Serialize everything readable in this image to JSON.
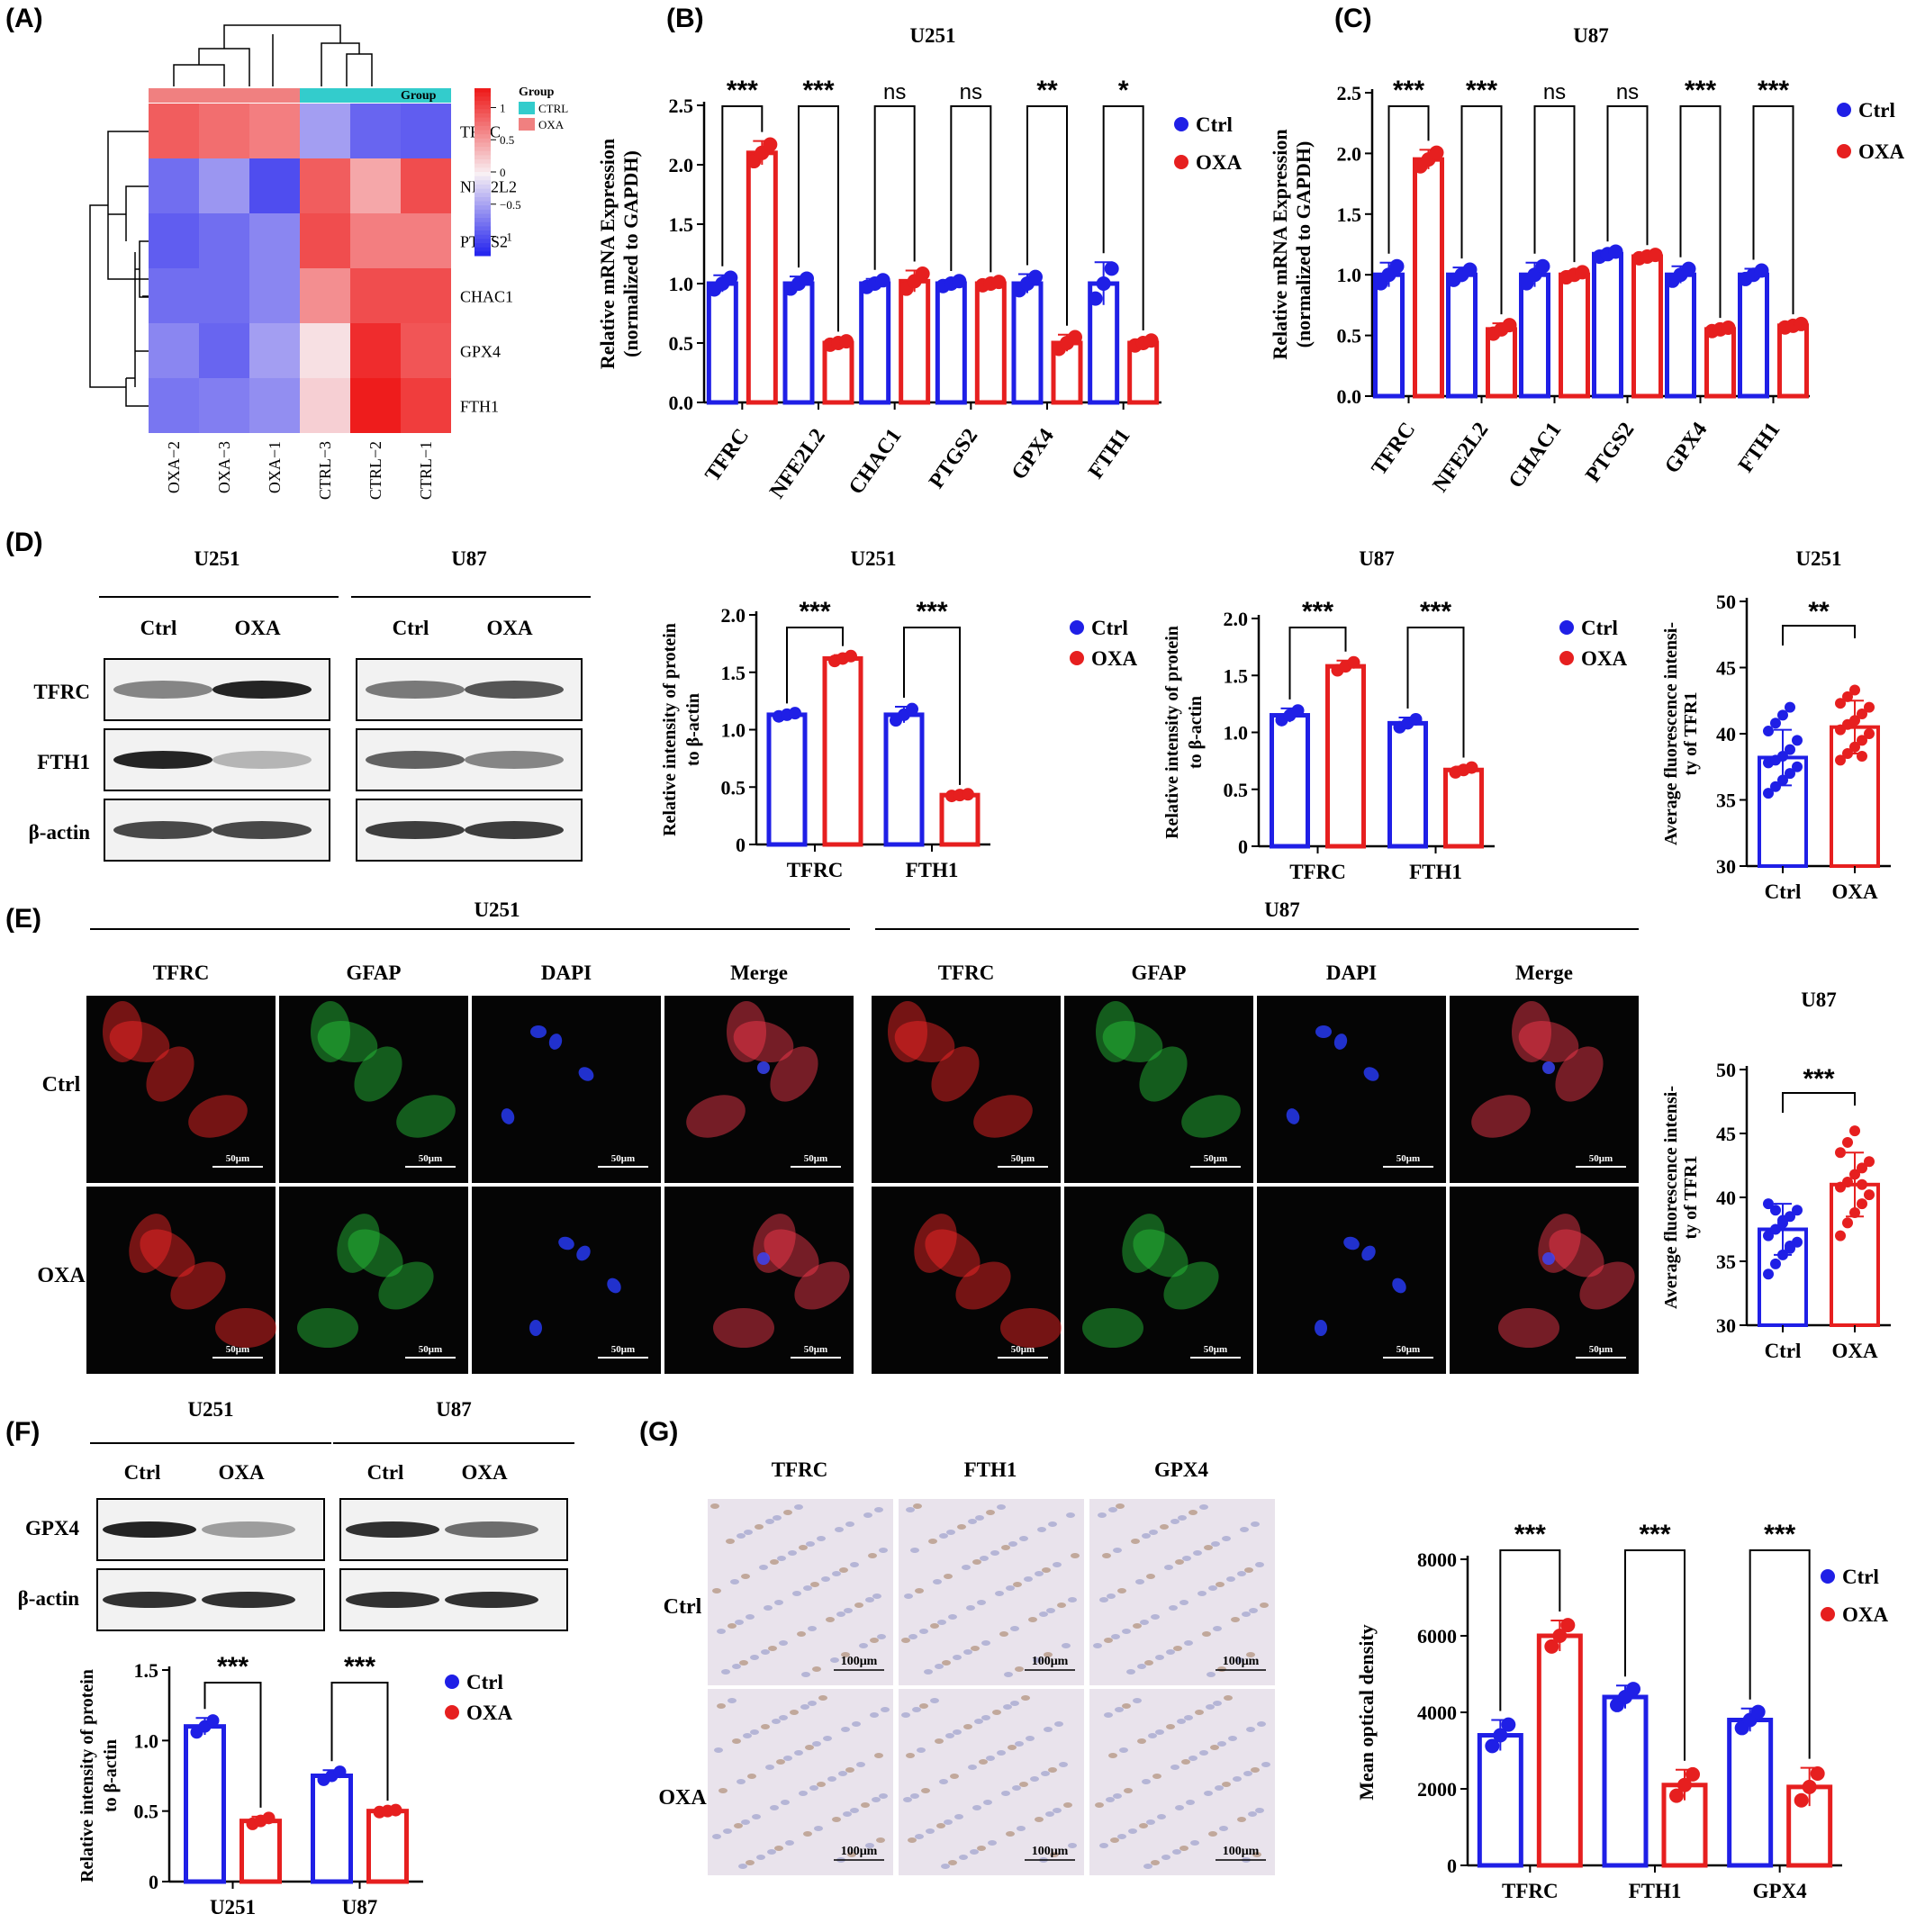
{
  "panel_letters": [
    "(A)",
    "(B)",
    "(C)",
    "(D)",
    "(E)",
    "(F)",
    "(G)"
  ],
  "colors": {
    "ctrl": "#1f1fe6",
    "oxa": "#e61f1f",
    "group_ctrl": "#33cccc",
    "group_oxa": "#f08080",
    "heat_high": "#ee1c1c",
    "heat_low": "#1c1cee"
  },
  "heatmap": {
    "group_label": "Group",
    "legend_title": "Group",
    "legend_items": [
      "CTRL",
      "OXA"
    ],
    "scale_ticks": [
      "1",
      "0.5",
      "0",
      "−0.5",
      "−1"
    ],
    "rows": [
      "TFRC",
      "NFE2L2",
      "PTGS2",
      "CHAC1",
      "GPX4",
      "FTH1"
    ],
    "cols": [
      "OXA−2",
      "OXA−3",
      "OXA−1",
      "CTRL−3",
      "CTRL−2",
      "CTRL−1"
    ],
    "col_groups": [
      "OXA",
      "OXA",
      "OXA",
      "CTRL",
      "CTRL",
      "CTRL"
    ],
    "values": [
      [
        0.9,
        0.8,
        0.7,
        -0.5,
        -0.85,
        -0.9
      ],
      [
        -0.8,
        -0.55,
        -1.0,
        0.9,
        0.45,
        1.0
      ],
      [
        -0.9,
        -0.8,
        -0.65,
        1.0,
        0.7,
        0.7
      ],
      [
        -0.8,
        -0.8,
        -0.65,
        0.6,
        1.0,
        1.0
      ],
      [
        -0.65,
        -0.85,
        -0.5,
        0.1,
        1.2,
        0.95
      ],
      [
        -0.75,
        -0.7,
        -0.6,
        0.2,
        1.3,
        1.1
      ]
    ]
  },
  "chart_data": [
    {
      "id": "B",
      "type": "bar",
      "title": "U251",
      "ylabel": "Relative mRNA Expression",
      "ylabel2": "(normalized to GAPDH)",
      "ylim": [
        0,
        2.5
      ],
      "yticks": [
        "0.0",
        "0.5",
        "1.0",
        "1.5",
        "2.0",
        "2.5"
      ],
      "categories": [
        "TFRC",
        "NFE2L2",
        "CHAC1",
        "PTGS2",
        "GPX4",
        "FTH1"
      ],
      "series": [
        {
          "name": "Ctrl",
          "values": [
            1.0,
            1.0,
            1.0,
            1.0,
            1.0,
            1.0
          ],
          "err": [
            0.07,
            0.06,
            0.04,
            0.03,
            0.08,
            0.18
          ]
        },
        {
          "name": "OXA",
          "values": [
            2.1,
            0.5,
            1.02,
            1.0,
            0.5,
            0.5
          ],
          "err": [
            0.1,
            0.02,
            0.09,
            0.02,
            0.07,
            0.03
          ]
        }
      ],
      "significance": [
        "***",
        "***",
        "ns",
        "ns",
        "**",
        "*"
      ],
      "legend": [
        "Ctrl",
        "OXA"
      ]
    },
    {
      "id": "C",
      "type": "bar",
      "title": "U87",
      "ylabel": "Relative mRNA Expression",
      "ylabel2": "(normalized to GAPDH)",
      "ylim": [
        0,
        2.5
      ],
      "yticks": [
        "0.0",
        "0.5",
        "1.0",
        "1.5",
        "2.0",
        "2.5"
      ],
      "categories": [
        "TFRC",
        "NFE2L2",
        "CHAC1",
        "PTGS2",
        "GPX4",
        "FTH1"
      ],
      "series": [
        {
          "name": "Ctrl",
          "values": [
            1.0,
            1.0,
            1.0,
            1.17,
            1.0,
            1.0
          ],
          "err": [
            0.1,
            0.06,
            0.1,
            0.03,
            0.07,
            0.05
          ]
        },
        {
          "name": "OXA",
          "values": [
            1.95,
            0.55,
            1.0,
            1.15,
            0.55,
            0.58
          ],
          "err": [
            0.08,
            0.05,
            0.03,
            0.02,
            0.02,
            0.02
          ]
        }
      ],
      "significance": [
        "***",
        "***",
        "ns",
        "ns",
        "***",
        "***"
      ],
      "legend": [
        "Ctrl",
        "OXA"
      ]
    },
    {
      "id": "D1",
      "type": "bar",
      "title": "U251",
      "ylabel": "Relative intensity of protein",
      "ylabel2": "to β-actin",
      "ylim": [
        0,
        2.0
      ],
      "yticks": [
        "0",
        "0.5",
        "1.0",
        "1.5",
        "2.0"
      ],
      "categories": [
        "TFRC",
        "FTH1"
      ],
      "series": [
        {
          "name": "Ctrl",
          "values": [
            1.13,
            1.13
          ],
          "err": [
            0.02,
            0.07
          ]
        },
        {
          "name": "OXA",
          "values": [
            1.62,
            0.43
          ],
          "err": [
            0.03,
            0.01
          ]
        }
      ],
      "significance": [
        "***",
        "***"
      ],
      "legend": [
        "Ctrl",
        "OXA"
      ]
    },
    {
      "id": "D2",
      "type": "bar",
      "title": "U87",
      "ylabel": "Relative intensity of protein",
      "ylabel2": "to β-actin",
      "ylim": [
        0,
        2.0
      ],
      "yticks": [
        "0",
        "0.5",
        "1.0",
        "1.5",
        "2.0"
      ],
      "categories": [
        "TFRC",
        "FTH1"
      ],
      "series": [
        {
          "name": "Ctrl",
          "values": [
            1.15,
            1.08
          ],
          "err": [
            0.06,
            0.05
          ]
        },
        {
          "name": "OXA",
          "values": [
            1.58,
            0.67
          ],
          "err": [
            0.05,
            0.03
          ]
        }
      ],
      "significance": [
        "***",
        "***"
      ],
      "legend": [
        "Ctrl",
        "OXA"
      ]
    },
    {
      "id": "D3",
      "type": "bar",
      "title": "U251",
      "ylabel": "Average fluorescence intensi-",
      "ylabel2": "ty of TFR1",
      "ylim": [
        30,
        50
      ],
      "yticks": [
        "30",
        "35",
        "40",
        "45",
        "50"
      ],
      "categories": [
        "Ctrl",
        "OXA"
      ],
      "values": [
        38.2,
        40.5
      ],
      "err": [
        2.1,
        2.0
      ],
      "points": [
        [
          35.5,
          36.0,
          36.5,
          37.0,
          37.5,
          37.8,
          38.0,
          38.3,
          38.8,
          39.5,
          40.2,
          40.8,
          41.4,
          42.0
        ],
        [
          38.0,
          38.5,
          39.0,
          39.5,
          40.0,
          40.3,
          40.7,
          41.0,
          41.5,
          42.0,
          42.3,
          42.8,
          43.3,
          38.3
        ]
      ],
      "significance": [
        "**"
      ]
    },
    {
      "id": "E1",
      "type": "bar",
      "title": "U87",
      "ylabel": "Average fluorescence intensi-",
      "ylabel2": "ty of TFR1",
      "ylim": [
        30,
        50
      ],
      "yticks": [
        "30",
        "35",
        "40",
        "45",
        "50"
      ],
      "categories": [
        "Ctrl",
        "OXA"
      ],
      "values": [
        37.5,
        41.0
      ],
      "err": [
        2.0,
        2.5
      ],
      "points": [
        [
          34.0,
          34.8,
          35.5,
          36.0,
          36.5,
          37.0,
          37.5,
          38.0,
          38.5,
          39.0,
          39.5,
          39.0,
          38.2,
          36.2
        ],
        [
          37.0,
          38.0,
          38.8,
          39.5,
          40.2,
          40.8,
          41.2,
          41.8,
          42.3,
          42.8,
          43.5,
          44.3,
          45.2,
          41.0
        ]
      ],
      "significance": [
        "***"
      ]
    },
    {
      "id": "F",
      "type": "bar",
      "title": "",
      "ylabel": "Relative intensity of protein",
      "ylabel2": "to β-actin",
      "ylim": [
        0,
        1.5
      ],
      "yticks": [
        "0",
        "0.5",
        "1.0",
        "1.5"
      ],
      "categories": [
        "U251",
        "U87"
      ],
      "series": [
        {
          "name": "Ctrl",
          "values": [
            1.1,
            0.75
          ],
          "err": [
            0.06,
            0.04
          ]
        },
        {
          "name": "OXA",
          "values": [
            0.43,
            0.5
          ],
          "err": [
            0.03,
            0.01
          ]
        }
      ],
      "significance": [
        "***",
        "***"
      ],
      "legend": [
        "Ctrl",
        "OXA"
      ]
    },
    {
      "id": "G",
      "type": "bar",
      "title": "",
      "ylabel": "Mean optical density",
      "ylabel2": "",
      "ylim": [
        0,
        8000
      ],
      "yticks": [
        "0",
        "2000",
        "4000",
        "6000",
        "8000"
      ],
      "categories": [
        "TFRC",
        "FTH1",
        "GPX4"
      ],
      "series": [
        {
          "name": "Ctrl",
          "values": [
            3400,
            4400,
            3800
          ],
          "err": [
            400,
            300,
            300
          ]
        },
        {
          "name": "OXA",
          "values": [
            6000,
            2100,
            2050
          ],
          "err": [
            400,
            400,
            500
          ]
        }
      ],
      "significance": [
        "***",
        "***",
        "***"
      ],
      "legend": [
        "Ctrl",
        "OXA"
      ]
    }
  ],
  "western": {
    "d_cells": [
      "U251",
      "U87"
    ],
    "d_conditions": [
      "Ctrl",
      "OXA"
    ],
    "d_rows": [
      "TFRC",
      "FTH1",
      "β-actin"
    ],
    "f_cells": [
      "U251",
      "U87"
    ],
    "f_conditions": [
      "Ctrl",
      "OXA"
    ],
    "f_rows": [
      "GPX4",
      "β-actin"
    ]
  },
  "if_panel": {
    "cells": [
      "U251",
      "U87"
    ],
    "channels": [
      "TFRC",
      "GFAP",
      "DAPI",
      "Merge"
    ],
    "rows": [
      "Ctrl",
      "OXA"
    ],
    "scale": "50μm"
  },
  "ihc": {
    "cols": [
      "TFRC",
      "FTH1",
      "GPX4"
    ],
    "rows": [
      "Ctrl",
      "OXA"
    ],
    "scale": "100μm"
  }
}
